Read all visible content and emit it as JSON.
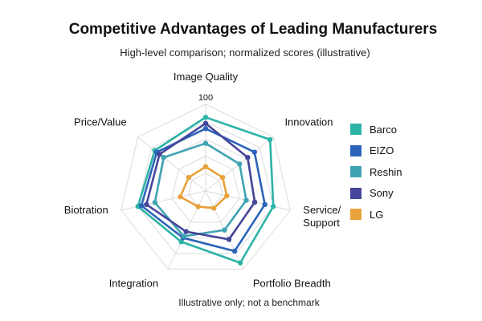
{
  "chart_data": {
    "type": "radar",
    "title": "Competitive Advantages of Leading Manufacturers",
    "subtitle": "High-level comparison; normalized scores (illustrative)",
    "footnote": "Illustrative only; not a benchmark",
    "axes": [
      "Image Quality",
      "Innovation",
      "Service/\nSupport",
      "Portfolio Breadth",
      "Integration",
      "Biotration",
      "Price/Value"
    ],
    "rmax": 100,
    "tick_labels": [
      {
        "value": 100,
        "label": "100"
      }
    ],
    "series": [
      {
        "name": "Barco",
        "color": "#2bb3a6",
        "values": [
          85,
          95,
          80,
          92,
          65,
          80,
          75
        ]
      },
      {
        "name": "EIZO",
        "color": "#2b63b8",
        "values": [
          72,
          72,
          70,
          77,
          60,
          76,
          72
        ]
      },
      {
        "name": "Reshin",
        "color": "#3fa3b3",
        "values": [
          55,
          50,
          48,
          50,
          58,
          60,
          62
        ]
      },
      {
        "name": "Sony",
        "color": "#45469a",
        "values": [
          78,
          62,
          58,
          62,
          52,
          70,
          68
        ]
      },
      {
        "name": "LG",
        "color": "#e8a23a",
        "values": [
          28,
          25,
          25,
          22,
          20,
          30,
          25
        ]
      }
    ],
    "legend_position": "right",
    "grid": true
  }
}
